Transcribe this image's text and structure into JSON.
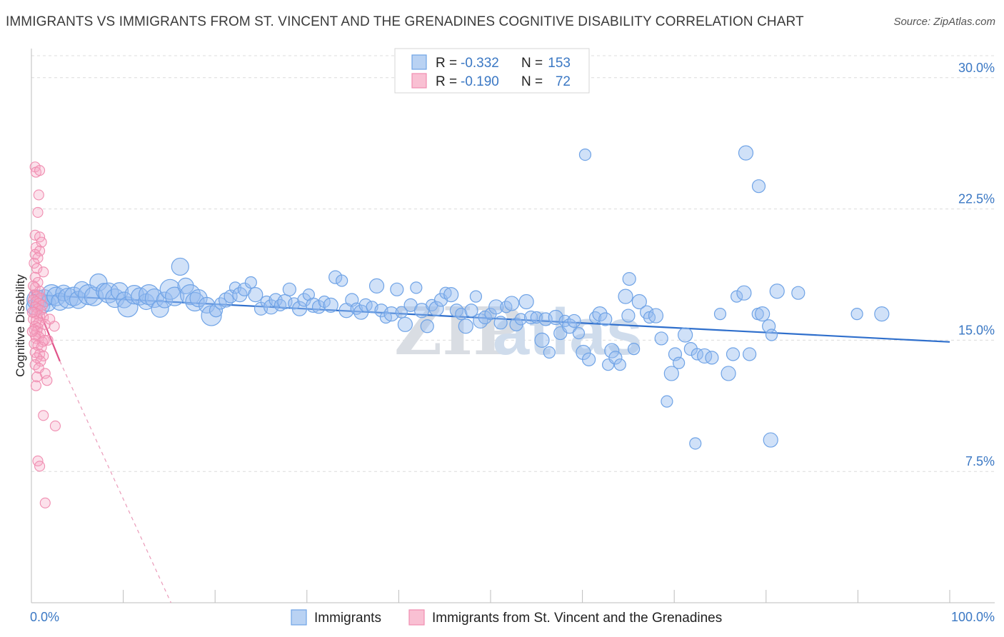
{
  "title": "IMMIGRANTS VS IMMIGRANTS FROM ST. VINCENT AND THE GRENADINES COGNITIVE DISABILITY CORRELATION CHART",
  "source": "Source: ZipAtlas.com",
  "watermark": {
    "zip": "ZIP",
    "atlas": "atlas"
  },
  "chart_data": {
    "type": "scatter",
    "title": "IMMIGRANTS VS IMMIGRANTS FROM ST. VINCENT AND THE GRENADINES COGNITIVE DISABILITY CORRELATION CHART",
    "xlabel": "",
    "ylabel": "Cognitive Disability",
    "xlim": [
      0,
      100
    ],
    "ylim": [
      0,
      31.5
    ],
    "x_tick_labels": [
      "0.0%",
      "100.0%"
    ],
    "y_ticks": [
      7.5,
      15.0,
      22.5,
      30.0
    ],
    "y_tick_labels": [
      "7.5%",
      "15.0%",
      "22.5%",
      "30.0%"
    ],
    "grid": true,
    "legend_position": "top-center",
    "legend": [
      {
        "r_label": "R =",
        "r_value": "-0.332",
        "n_label": "N =",
        "n_value": "153"
      },
      {
        "r_label": "R =",
        "r_value": "-0.190",
        "n_label": "N =",
        "n_value": "72"
      }
    ],
    "series": [
      {
        "name": "Immigrants",
        "color": "#6fa3e6",
        "line_color": "#2f6fcc",
        "trend": {
          "x": [
            0,
            100
          ],
          "y": [
            17.6,
            14.9
          ]
        },
        "points": [
          [
            0.3,
            16.9
          ],
          [
            0.6,
            17.3
          ],
          [
            1.0,
            17.0
          ],
          [
            1.4,
            17.4
          ],
          [
            1.8,
            17.1
          ],
          [
            2.2,
            17.6
          ],
          [
            2.7,
            17.5
          ],
          [
            3.1,
            17.2
          ],
          [
            3.5,
            17.7
          ],
          [
            4.0,
            17.4
          ],
          [
            4.6,
            17.5
          ],
          [
            5.1,
            17.3
          ],
          [
            5.5,
            17.9
          ],
          [
            6.2,
            17.6
          ],
          [
            6.8,
            17.5
          ],
          [
            7.3,
            18.3
          ],
          [
            7.9,
            17.8
          ],
          [
            8.4,
            17.7
          ],
          [
            9.1,
            17.4
          ],
          [
            9.6,
            17.8
          ],
          [
            10.1,
            17.3
          ],
          [
            10.5,
            16.9
          ],
          [
            11.2,
            17.6
          ],
          [
            11.8,
            17.5
          ],
          [
            12.5,
            17.2
          ],
          [
            12.8,
            17.6
          ],
          [
            13.4,
            17.4
          ],
          [
            14.0,
            16.8
          ],
          [
            14.5,
            17.3
          ],
          [
            15.1,
            17.9
          ],
          [
            15.6,
            17.5
          ],
          [
            16.2,
            19.2
          ],
          [
            16.8,
            18.1
          ],
          [
            17.3,
            17.6
          ],
          [
            17.8,
            17.2
          ],
          [
            18.2,
            17.4
          ],
          [
            19.1,
            17.0
          ],
          [
            19.6,
            16.4
          ],
          [
            20.1,
            16.7
          ],
          [
            20.6,
            17.1
          ],
          [
            21.2,
            17.3
          ],
          [
            21.7,
            17.5
          ],
          [
            22.2,
            18.0
          ],
          [
            22.7,
            17.6
          ],
          [
            23.2,
            17.9
          ],
          [
            23.9,
            18.3
          ],
          [
            24.4,
            17.6
          ],
          [
            25.0,
            16.8
          ],
          [
            25.6,
            17.2
          ],
          [
            26.1,
            16.9
          ],
          [
            26.6,
            17.3
          ],
          [
            27.1,
            17.0
          ],
          [
            27.6,
            17.2
          ],
          [
            28.1,
            17.9
          ],
          [
            28.6,
            17.1
          ],
          [
            29.2,
            16.8
          ],
          [
            29.7,
            17.3
          ],
          [
            30.2,
            17.6
          ],
          [
            30.7,
            17.0
          ],
          [
            31.3,
            16.9
          ],
          [
            31.9,
            17.2
          ],
          [
            32.6,
            17.0
          ],
          [
            33.1,
            18.6
          ],
          [
            33.8,
            18.4
          ],
          [
            34.3,
            16.7
          ],
          [
            34.9,
            17.3
          ],
          [
            35.4,
            16.8
          ],
          [
            35.9,
            16.6
          ],
          [
            36.4,
            17.0
          ],
          [
            37.1,
            16.9
          ],
          [
            37.6,
            18.1
          ],
          [
            38.1,
            16.7
          ],
          [
            38.6,
            16.3
          ],
          [
            39.2,
            16.5
          ],
          [
            39.8,
            17.9
          ],
          [
            40.3,
            16.6
          ],
          [
            40.7,
            15.9
          ],
          [
            41.3,
            17.0
          ],
          [
            41.9,
            18.0
          ],
          [
            42.5,
            16.7
          ],
          [
            43.1,
            15.8
          ],
          [
            43.6,
            17.0
          ],
          [
            44.1,
            16.8
          ],
          [
            44.6,
            17.3
          ],
          [
            45.1,
            17.7
          ],
          [
            45.7,
            17.6
          ],
          [
            46.3,
            16.7
          ],
          [
            46.8,
            16.5
          ],
          [
            47.3,
            15.8
          ],
          [
            47.9,
            16.7
          ],
          [
            48.4,
            17.5
          ],
          [
            48.9,
            16.1
          ],
          [
            49.4,
            16.3
          ],
          [
            50.0,
            16.5
          ],
          [
            50.6,
            16.9
          ],
          [
            51.1,
            16.0
          ],
          [
            51.7,
            16.9
          ],
          [
            52.3,
            17.1
          ],
          [
            52.8,
            15.9
          ],
          [
            53.3,
            16.2
          ],
          [
            53.9,
            17.2
          ],
          [
            54.4,
            16.3
          ],
          [
            55.0,
            16.3
          ],
          [
            55.6,
            15.0
          ],
          [
            56.0,
            16.2
          ],
          [
            56.4,
            14.3
          ],
          [
            57.1,
            16.3
          ],
          [
            57.6,
            15.4
          ],
          [
            58.1,
            16.1
          ],
          [
            58.6,
            15.8
          ],
          [
            59.1,
            16.1
          ],
          [
            59.6,
            15.4
          ],
          [
            60.1,
            14.3
          ],
          [
            60.7,
            13.9
          ],
          [
            61.4,
            16.3
          ],
          [
            61.9,
            16.5
          ],
          [
            62.5,
            16.2
          ],
          [
            62.8,
            13.6
          ],
          [
            63.2,
            14.4
          ],
          [
            63.6,
            14.0
          ],
          [
            64.1,
            13.6
          ],
          [
            64.7,
            17.5
          ],
          [
            65.0,
            16.4
          ],
          [
            65.6,
            14.5
          ],
          [
            66.2,
            17.2
          ],
          [
            67.0,
            16.6
          ],
          [
            67.3,
            16.3
          ],
          [
            68.0,
            16.4
          ],
          [
            68.6,
            15.1
          ],
          [
            69.2,
            11.5
          ],
          [
            69.7,
            13.1
          ],
          [
            70.1,
            14.2
          ],
          [
            70.5,
            13.7
          ],
          [
            71.2,
            15.3
          ],
          [
            71.8,
            14.5
          ],
          [
            72.5,
            14.2
          ],
          [
            73.3,
            14.1
          ],
          [
            74.1,
            14.0
          ],
          [
            75.0,
            16.5
          ],
          [
            75.9,
            13.1
          ],
          [
            76.4,
            14.2
          ],
          [
            76.8,
            17.5
          ],
          [
            77.6,
            17.7
          ],
          [
            78.2,
            14.2
          ],
          [
            79.1,
            16.5
          ],
          [
            79.6,
            16.5
          ],
          [
            80.3,
            15.8
          ],
          [
            80.6,
            15.3
          ],
          [
            81.2,
            17.8
          ],
          [
            83.5,
            17.7
          ],
          [
            60.3,
            25.6
          ],
          [
            77.8,
            25.7
          ],
          [
            79.2,
            23.8
          ],
          [
            72.3,
            9.1
          ],
          [
            80.5,
            9.3
          ],
          [
            65.1,
            18.5
          ],
          [
            89.9,
            16.5
          ],
          [
            92.6,
            16.5
          ]
        ]
      },
      {
        "name": "Immigrants from St. Vincent and the Grenadines",
        "color": "#f08db0",
        "line_color": "#e0548a",
        "trend": {
          "x": [
            0,
            3.1
          ],
          "y": [
            17.8,
            13.8
          ]
        },
        "trend_extension": {
          "x": [
            3.1,
            15.2
          ],
          "y": [
            13.8,
            0
          ]
        },
        "points": [
          [
            0.4,
            24.9
          ],
          [
            0.5,
            24.6
          ],
          [
            0.9,
            24.7
          ],
          [
            0.8,
            23.3
          ],
          [
            0.7,
            22.3
          ],
          [
            0.4,
            21.0
          ],
          [
            0.9,
            20.9
          ],
          [
            1.1,
            20.6
          ],
          [
            0.5,
            20.3
          ],
          [
            0.9,
            20.1
          ],
          [
            0.4,
            19.9
          ],
          [
            0.7,
            19.7
          ],
          [
            0.3,
            19.4
          ],
          [
            0.6,
            19.1
          ],
          [
            1.3,
            18.9
          ],
          [
            0.4,
            18.6
          ],
          [
            0.7,
            18.3
          ],
          [
            0.4,
            18.0
          ],
          [
            0.9,
            17.8
          ],
          [
            0.3,
            17.6
          ],
          [
            0.6,
            17.5
          ],
          [
            1.0,
            17.4
          ],
          [
            0.2,
            17.3
          ],
          [
            0.5,
            17.2
          ],
          [
            0.8,
            17.1
          ],
          [
            1.2,
            17.0
          ],
          [
            0.4,
            16.9
          ],
          [
            0.7,
            16.8
          ],
          [
            1.0,
            16.7
          ],
          [
            0.3,
            16.6
          ],
          [
            0.6,
            16.5
          ],
          [
            0.9,
            16.4
          ],
          [
            1.3,
            16.3
          ],
          [
            0.2,
            16.2
          ],
          [
            0.5,
            16.1
          ],
          [
            0.8,
            16.0
          ],
          [
            1.5,
            15.9
          ],
          [
            0.4,
            15.8
          ],
          [
            0.7,
            15.7
          ],
          [
            2.5,
            15.8
          ],
          [
            0.3,
            15.6
          ],
          [
            0.6,
            15.5
          ],
          [
            1.0,
            15.4
          ],
          [
            0.4,
            15.3
          ],
          [
            0.8,
            15.2
          ],
          [
            1.8,
            15.0
          ],
          [
            0.5,
            15.1
          ],
          [
            1.2,
            14.9
          ],
          [
            0.3,
            14.8
          ],
          [
            0.7,
            14.7
          ],
          [
            1.1,
            14.6
          ],
          [
            0.4,
            14.3
          ],
          [
            0.9,
            14.2
          ],
          [
            1.3,
            14.1
          ],
          [
            0.6,
            14.0
          ],
          [
            1.0,
            13.8
          ],
          [
            0.4,
            13.6
          ],
          [
            0.8,
            13.4
          ],
          [
            1.5,
            13.1
          ],
          [
            0.6,
            12.9
          ],
          [
            1.7,
            12.7
          ],
          [
            0.5,
            12.4
          ],
          [
            1.3,
            10.7
          ],
          [
            2.6,
            10.1
          ],
          [
            0.7,
            8.1
          ],
          [
            0.9,
            7.8
          ],
          [
            1.5,
            5.7
          ],
          [
            1.4,
            15.0
          ],
          [
            2.0,
            16.2
          ],
          [
            0.2,
            18.1
          ],
          [
            0.1,
            16.6
          ],
          [
            0.1,
            15.5
          ]
        ]
      }
    ]
  }
}
